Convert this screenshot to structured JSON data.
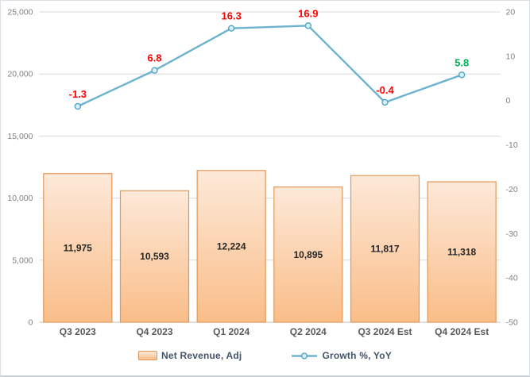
{
  "chart_data": {
    "type": "combo",
    "title": "",
    "categories": [
      "Q3 2023",
      "Q4 2023",
      "Q1 2024",
      "Q2 2024",
      "Q3 2024 Est",
      "Q4 2024 Est"
    ],
    "series": [
      {
        "name": "Net Revenue, Adj",
        "type": "bar",
        "axis": "left",
        "values": [
          11975,
          10593,
          12224,
          10895,
          11817,
          11318
        ],
        "labels": [
          "11,975",
          "10,593",
          "12,224",
          "10,895",
          "11,817",
          "11,318"
        ]
      },
      {
        "name": "Growth %, YoY",
        "type": "line",
        "axis": "right",
        "values": [
          -1.3,
          6.8,
          16.3,
          16.9,
          -0.4,
          5.8
        ],
        "labels": [
          "-1.3",
          "6.8",
          "16.3",
          "16.9",
          "-0.4",
          "5.8"
        ],
        "label_colors": [
          "#FF0000",
          "#FF0000",
          "#FF0000",
          "#FF0000",
          "#FF0000",
          "#00B050"
        ]
      }
    ],
    "axes": {
      "left": {
        "min": 0,
        "max": 25000,
        "step": 5000,
        "format": "comma",
        "tick_labels": [
          "0",
          "5,000",
          "10,000",
          "15,000",
          "20,000",
          "25,000"
        ]
      },
      "right": {
        "min": -50,
        "max": 20,
        "step": 10,
        "format": "plain",
        "tick_labels": [
          "-50",
          "-40",
          "-30",
          "-20",
          "-10",
          "0",
          "10",
          "20"
        ]
      }
    },
    "grid": true,
    "legend_position": "bottom",
    "colors": {
      "bar_fill_top": "#FDE9D9",
      "bar_fill_bottom": "#FABD88",
      "bar_border": "#E0985A",
      "bar_label_text": "#262626",
      "line": "#6DB3D0",
      "marker_fill": "#DAF0F8",
      "marker_stroke": "#4FA5C6",
      "grid": "#D9D9D9",
      "axis_line": "#BFBFBF",
      "tick_text": "#808080",
      "category_text": "#595959",
      "legend_text": "#44546A",
      "label_negative": "#FF0000",
      "label_positive": "#00B050"
    }
  }
}
